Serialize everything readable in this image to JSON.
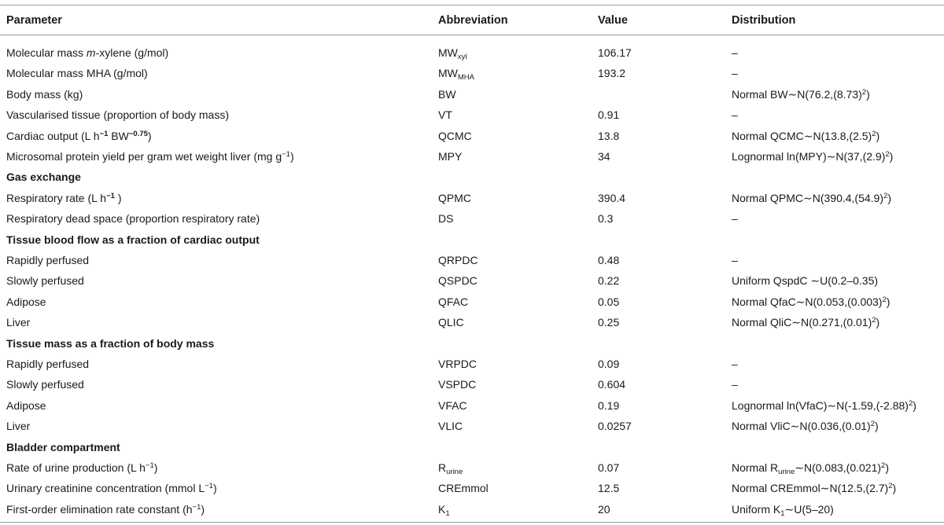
{
  "headers": [
    "Parameter",
    "Abbreviation",
    "Value",
    "Distribution"
  ],
  "rows": [
    {
      "parameter": [
        "Molecular mass ",
        "m",
        "-xylene (g/mol)"
      ],
      "abbr": [
        "MW",
        "xyl"
      ],
      "value": "106.17",
      "dist": [
        "–"
      ]
    },
    {
      "parameter": [
        "Molecular mass MHA (g/mol)"
      ],
      "abbr": [
        "MW",
        "MHA"
      ],
      "value": "193.2",
      "dist": [
        "–"
      ]
    },
    {
      "parameter": [
        "Body mass (kg)"
      ],
      "abbr": [
        "BW"
      ],
      "value": "",
      "dist": [
        "Normal BW∼N(76.2,(8.73)",
        "2",
        ")"
      ]
    },
    {
      "parameter": [
        "Vascularised tissue (proportion of body mass)"
      ],
      "abbr": [
        "VT"
      ],
      "value": "0.91",
      "dist": [
        "–"
      ]
    },
    {
      "parameter": [
        "Cardiac output (L h",
        "−1",
        " BW",
        "−0.75",
        ")"
      ],
      "abbr": [
        "QCMC"
      ],
      "value": "13.8",
      "dist": [
        "Normal QCMC∼N(13.8,(2.5)",
        "2",
        ")"
      ]
    },
    {
      "parameter": [
        "Microsomal protein yield per gram wet weight liver (mg g",
        "−1",
        ")"
      ],
      "abbr": [
        "MPY"
      ],
      "value": "34",
      "dist": [
        "Lognormal ln(MPY)∼N(37,(2.9)",
        "2",
        ")"
      ]
    },
    {
      "section": "Gas exchange"
    },
    {
      "parameter": [
        "Respiratory rate (L h",
        "−1",
        " )"
      ],
      "abbr": [
        "QPMC"
      ],
      "value": "390.4",
      "dist": [
        "Normal QPMC∼N(390.4,(54.9)",
        "2",
        ")"
      ]
    },
    {
      "parameter": [
        "Respiratory dead space (proportion respiratory rate)"
      ],
      "abbr": [
        "DS"
      ],
      "value": "0.3",
      "dist": [
        "–"
      ]
    },
    {
      "section": "Tissue blood flow as a fraction of cardiac output"
    },
    {
      "parameter": [
        "Rapidly perfused"
      ],
      "abbr": [
        "QRPDC"
      ],
      "value": "0.48",
      "dist": [
        "–"
      ]
    },
    {
      "parameter": [
        "Slowly perfused"
      ],
      "abbr": [
        "QSPDC"
      ],
      "value": "0.22",
      "dist": [
        "Uniform QspdC ∼U(0.2–0.35)"
      ]
    },
    {
      "parameter": [
        "Adipose"
      ],
      "abbr": [
        "QFAC"
      ],
      "value": "0.05",
      "dist": [
        "Normal QfaC∼N(0.053,(0.003)",
        "2",
        ")"
      ]
    },
    {
      "parameter": [
        "Liver"
      ],
      "abbr": [
        "QLIC"
      ],
      "value": "0.25",
      "dist": [
        "Normal QliC∼N(0.271,(0.01)",
        "2",
        ")"
      ]
    },
    {
      "section": "Tissue mass as a fraction of body mass"
    },
    {
      "parameter": [
        "Rapidly perfused"
      ],
      "abbr": [
        "VRPDC"
      ],
      "value": "0.09",
      "dist": [
        "–"
      ]
    },
    {
      "parameter": [
        "Slowly perfused"
      ],
      "abbr": [
        "VSPDC"
      ],
      "value": "0.604",
      "dist": [
        "–"
      ]
    },
    {
      "parameter": [
        "Adipose"
      ],
      "abbr": [
        "VFAC"
      ],
      "value": "0.19",
      "dist": [
        "Lognormal ln(VfaC)∼N(-1.59,(-2.88)",
        "2",
        ")"
      ]
    },
    {
      "parameter": [
        "Liver"
      ],
      "abbr": [
        "VLIC"
      ],
      "value": "0.0257",
      "dist": [
        "Normal VliC∼N(0.036,(0.01)",
        "2",
        ")"
      ]
    },
    {
      "section": "Bladder compartment"
    },
    {
      "parameter": [
        "Rate of urine production (L h",
        "−1",
        ")"
      ],
      "abbr": [
        "R",
        "urine"
      ],
      "value": "0.07",
      "dist": [
        "Normal R",
        "urine",
        "∼N(0.083,(0.021)",
        "2",
        ")"
      ]
    },
    {
      "parameter": [
        "Urinary creatinine concentration (mmol L",
        "−1",
        ")"
      ],
      "abbr": [
        "CREmmol"
      ],
      "value": "12.5",
      "dist": [
        "Normal CREmmol∼N(12.5,(2.7)",
        "2",
        ")"
      ]
    },
    {
      "parameter": [
        "First-order elimination rate constant (h",
        "−1",
        ")"
      ],
      "abbr": [
        "K",
        "1"
      ],
      "value": "20",
      "dist": [
        "Uniform K",
        "1",
        "∼U(5–20)"
      ]
    }
  ]
}
